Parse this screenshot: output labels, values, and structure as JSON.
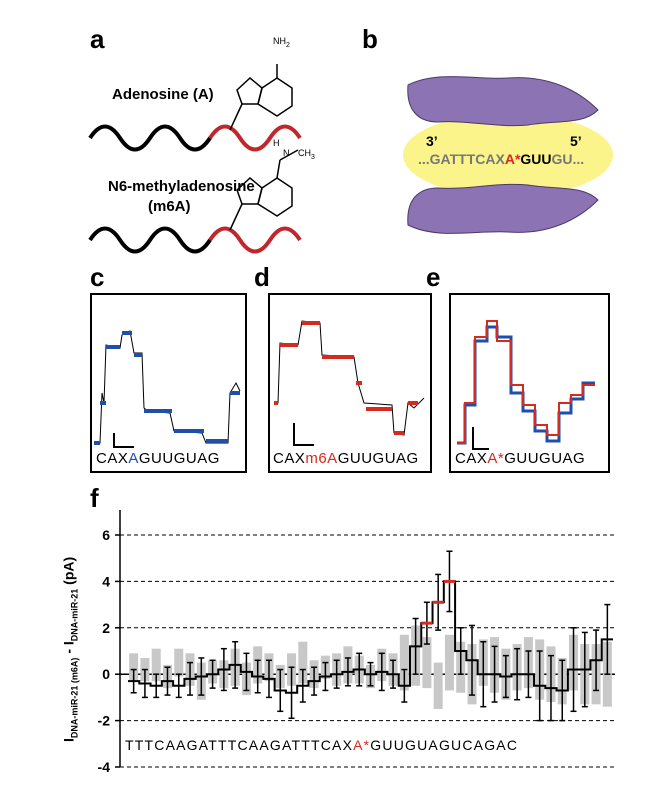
{
  "panels": {
    "a": {
      "letter": "a",
      "label_a": "Adenosine (A)",
      "label_b1": "N6-methyladenosine",
      "label_b2": "(m6A)",
      "nh2": "NH",
      "nh2_sub": "2",
      "nh": "H",
      "nh_n": "N",
      "ch3": "CH",
      "ch3_sub": "3"
    },
    "b": {
      "letter": "b",
      "prime3": "3’",
      "prime5": "5’",
      "seq_pre": "...GATTTCAX",
      "seq_star": "A*",
      "seq_mid": "GUU",
      "seq_post": "GU..."
    },
    "c": {
      "letter": "c",
      "seq_pre": "CAX",
      "seq_mark": "A",
      "seq_post": "GUUGUAG",
      "mark_color": "#1f4fa8"
    },
    "d": {
      "letter": "d",
      "seq_pre": "CAX",
      "seq_mark": "m6A",
      "seq_post": "GUUGUAG",
      "mark_color": "#d42a20"
    },
    "e": {
      "letter": "e",
      "seq_pre": "CAX",
      "seq_mark": "A*",
      "seq_post": "GUUGUAG",
      "mark_color": "#d42a20"
    },
    "f": {
      "letter": "f",
      "seq_pre": "TTTCAAGATTTCAAGATTTCAX",
      "seq_mark": "A*",
      "seq_post": "GUUGUAGUCAGAC",
      "ylabel_main": "I",
      "ylabel_sub1": "DNA-miR-21 (m6A)",
      "ylabel_mid": " - I",
      "ylabel_sub2": "DNA-miR-21",
      "ylabel_unit": " (pA)"
    }
  },
  "colors": {
    "blue": "#1f4fa8",
    "red": "#d42a20",
    "gray": "#c8c8c8",
    "black": "#000000"
  },
  "chart_data": {
    "type": "line",
    "ylabel": "IDNA-miR-21 (m6A) - IDNA-miR-21 (pA)",
    "ylim": [
      -4,
      6
    ],
    "yticks": [
      -4,
      -2,
      0,
      2,
      4,
      6
    ],
    "grid": "dashed horizontal at y ticks",
    "series": [
      {
        "values": [
          -0.3,
          -0.4,
          -0.5,
          -0.3,
          -0.5,
          -0.2,
          -0.1,
          0.0,
          0.2,
          0.4,
          0.1,
          -0.1,
          -0.2,
          -0.7,
          -0.8,
          -0.5,
          -0.3,
          -0.1,
          0.0,
          0.1,
          0.2,
          0.0,
          0.1,
          0.0,
          -0.5,
          1.2,
          2.2,
          3.1,
          4.0,
          1.0,
          0.6,
          0.0,
          0.0,
          -0.1,
          0.0,
          0.0,
          -0.5,
          -0.6,
          -0.7,
          0.2,
          0.2,
          0.6,
          1.5
        ],
        "errors": [
          0.5,
          0.6,
          0.5,
          0.6,
          0.5,
          0.7,
          0.8,
          0.6,
          0.9,
          1.0,
          0.8,
          0.7,
          0.8,
          0.9,
          1.1,
          0.7,
          0.6,
          0.6,
          0.6,
          0.6,
          0.7,
          0.5,
          0.8,
          0.6,
          0.7,
          1.2,
          0.9,
          1.2,
          1.3,
          1.0,
          1.5,
          1.4,
          1.2,
          0.9,
          1.1,
          1.0,
          1.5,
          1.4,
          1.3,
          1.8,
          1.6,
          1.3,
          1.5
        ]
      },
      {
        "values": [
          0.3,
          0.2,
          0.4,
          -0.1,
          0.5,
          0.2,
          -0.3,
          0.1,
          0.0,
          0.3,
          -0.2,
          0.4,
          0.3,
          -0.1,
          0.2,
          0.5,
          0.0,
          0.3,
          0.2,
          0.4,
          0.2,
          -0.1,
          0.4,
          0.2,
          0.5,
          0.8,
          0.5,
          -0.5,
          0.5,
          0.3,
          0.0,
          0.5,
          0.4,
          0.0,
          0.3,
          0.5,
          0.2,
          0.0,
          -0.3,
          0.5,
          0.0,
          0.0,
          0.0
        ],
        "errors": [
          0.6,
          0.5,
          0.7,
          0.5,
          0.6,
          0.7,
          0.8,
          0.5,
          0.6,
          0.8,
          0.7,
          0.8,
          0.6,
          0.5,
          0.7,
          0.9,
          0.6,
          0.5,
          0.7,
          0.8,
          0.6,
          0.5,
          0.7,
          0.7,
          1.2,
          1.3,
          1.1,
          1.0,
          1.2,
          1.1,
          1.3,
          1.0,
          1.2,
          1.1,
          1.0,
          1.1,
          1.3,
          1.2,
          1.0,
          1.2,
          1.3,
          1.3,
          1.4
        ]
      }
    ],
    "highlighted_x_indices": [
      26,
      27,
      28
    ]
  }
}
